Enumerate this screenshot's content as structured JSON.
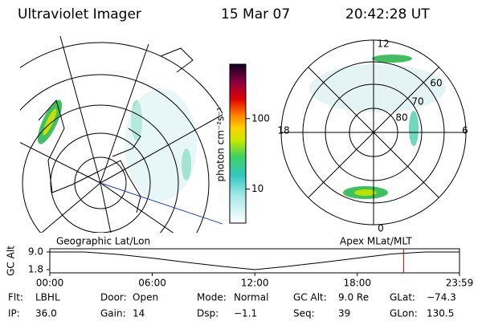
{
  "header": {
    "instrument": "Ultraviolet Imager",
    "date": "15 Mar 07",
    "time": "20:42:28 UT"
  },
  "polar_labels": {
    "noon": "12",
    "lat60": "60",
    "lat70": "70",
    "lat80": "80",
    "dusk": "18",
    "dawn": "6",
    "midnight": "0"
  },
  "chart_data": [
    {
      "type": "colorbar",
      "label": "photon cm⁻²s⁻¹",
      "log": true,
      "ylim": [
        3.3,
        590
      ],
      "yticks": [
        10,
        100
      ]
    },
    {
      "type": "line",
      "title_left": "Geographic Lat/Lon",
      "title_right": "Apex MLat/MLT",
      "ylabel": "GC Alt",
      "x": [
        0,
        2,
        4,
        6,
        8,
        10,
        12,
        14,
        16,
        18,
        20,
        22,
        23.983
      ],
      "series": [
        {
          "color": "#000000",
          "values": [
            9,
            9,
            8,
            6.5,
            4.8,
            3.2,
            1.8,
            3.2,
            4.8,
            6.5,
            8.2,
            9,
            9
          ]
        }
      ],
      "xlim": [
        0,
        23.983
      ],
      "xticks": [
        {
          "value": 0,
          "label": "00:00"
        },
        {
          "value": 6,
          "label": "06:00"
        },
        {
          "value": 12,
          "label": "12:00"
        },
        {
          "value": 18,
          "label": "18:00"
        },
        {
          "value": 23.983,
          "label": "23:59"
        }
      ],
      "ylim": [
        1.8,
        9.0
      ],
      "yticks": [
        {
          "value": 9.0,
          "label": "9.0"
        },
        {
          "value": 1.8,
          "label": "1.8"
        }
      ],
      "marker": {
        "x": 20.708,
        "color": "#cc0000"
      }
    }
  ],
  "footer": {
    "rows": [
      [
        [
          "Flt:",
          "LBHL"
        ],
        [
          "Door:",
          "Open"
        ],
        [
          "Mode:",
          "Normal"
        ],
        [
          "GC Alt:",
          "9.0 Re"
        ],
        [
          "GLat:",
          "−74.3"
        ]
      ],
      [
        [
          "IP:",
          "36.0"
        ],
        [
          "Gain:",
          "14"
        ],
        [
          "Dsp:",
          "−1.1"
        ],
        [
          "Seq:",
          "39"
        ],
        [
          "GLon:",
          "130.5"
        ]
      ]
    ]
  }
}
